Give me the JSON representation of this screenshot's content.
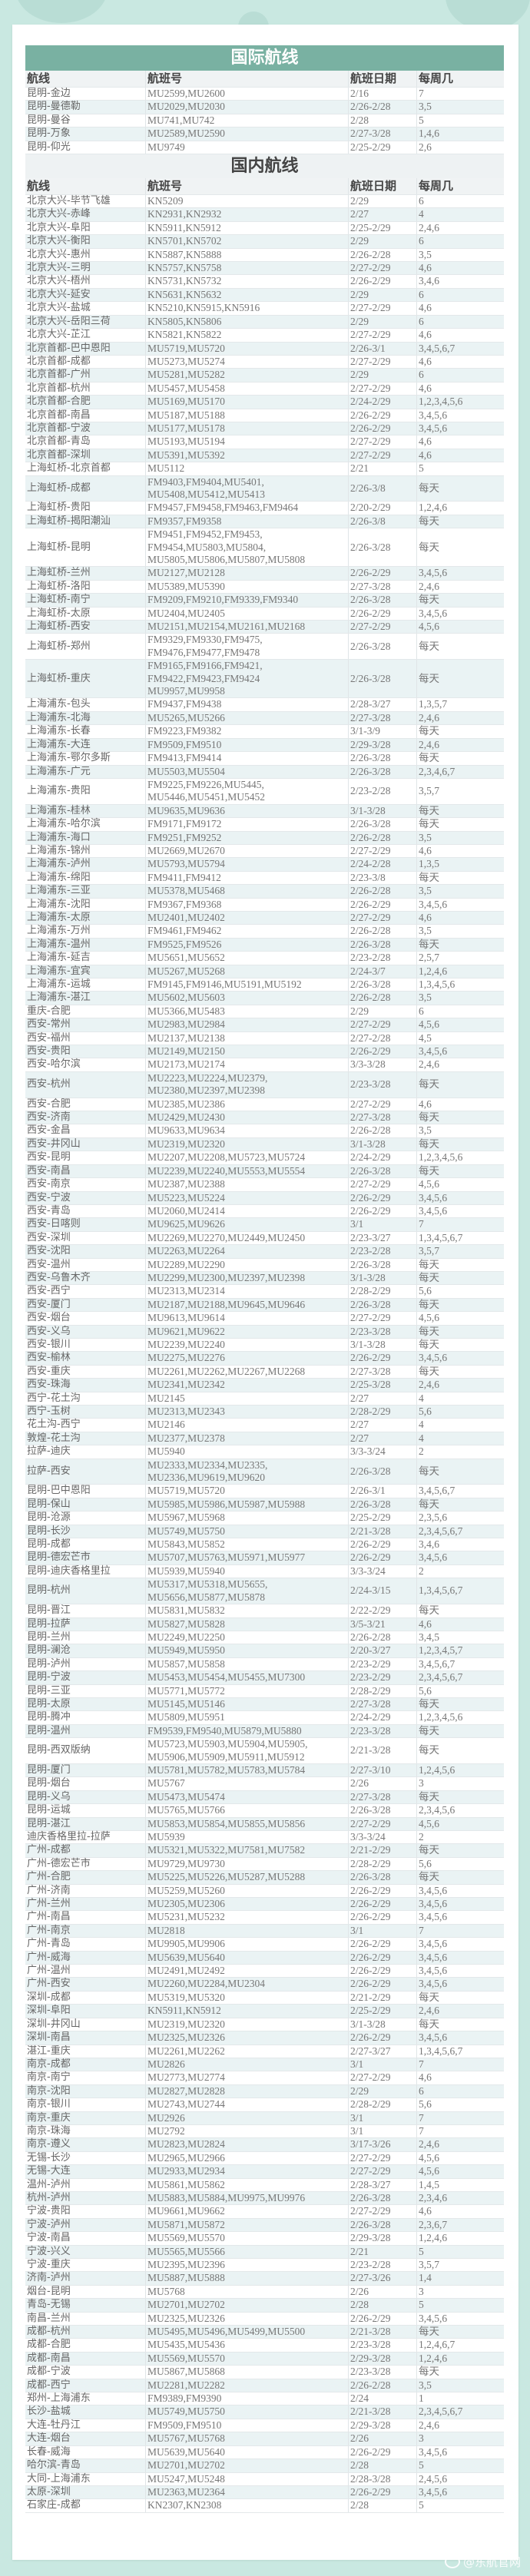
{
  "international": {
    "title": "国际航线",
    "headers": [
      "航线",
      "航班号",
      "航班日期",
      "每周几"
    ],
    "rows": [
      [
        "昆明-金边",
        "MU2599,MU2600",
        "2/16",
        "7"
      ],
      [
        "昆明-曼德勒",
        "MU2029,MU2030",
        "2/26-2/28",
        "3,5"
      ],
      [
        "昆明-曼谷",
        "MU741,MU742",
        "2/28",
        "5"
      ],
      [
        "昆明-万象",
        "MU2589,MU2590",
        "2/27-3/28",
        "1,4,6"
      ],
      [
        "昆明-仰光",
        "MU9749",
        "2/25-2/29",
        "2,6"
      ]
    ]
  },
  "domestic": {
    "title": "国内航线",
    "headers": [
      "航线",
      "航班号",
      "航班日期",
      "每周几"
    ],
    "rows": [
      [
        "北京大兴-毕节飞雄",
        "KN5209",
        "2/29",
        "6"
      ],
      [
        "北京大兴-赤峰",
        "KN2931,KN2932",
        "2/27",
        "4"
      ],
      [
        "北京大兴-阜阳",
        "KN5911,KN5912",
        "2/25-2/29",
        "2,4,6"
      ],
      [
        "北京大兴-衡阳",
        "KN5701,KN5702",
        "2/29",
        "6"
      ],
      [
        "北京大兴-惠州",
        "KN5887,KN5888",
        "2/26-2/28",
        "3,5"
      ],
      [
        "北京大兴-三明",
        "KN5757,KN5758",
        "2/27-2/29",
        "4,6"
      ],
      [
        "北京大兴-梧州",
        "KN5731,KN5732",
        "2/26-2/29",
        "3,4,6"
      ],
      [
        "北京大兴-延安",
        "KN5631,KN5632",
        "2/29",
        "6"
      ],
      [
        "北京大兴-盐城",
        "KN5210,KN5915,KN5916",
        "2/27-2/29",
        "4,6"
      ],
      [
        "北京大兴-岳阳三荷",
        "KN5805,KN5806",
        "2/29",
        "6"
      ],
      [
        "北京大兴-芷江",
        "KN5821,KN5822",
        "2/27-2/29",
        "4,6"
      ],
      [
        "北京首都-巴中恩阳",
        "MU5719,MU5720",
        "2/26-3/1",
        "3,4,5,6,7"
      ],
      [
        "北京首都-成都",
        "MU5273,MU5274",
        "2/27-2/29",
        "4,6"
      ],
      [
        "北京首都-广州",
        "MU5281,MU5282",
        "2/29",
        "6"
      ],
      [
        "北京首都-杭州",
        "MU5457,MU5458",
        "2/27-2/29",
        "4,6"
      ],
      [
        "北京首都-合肥",
        "MU5169,MU5170",
        "2/24-2/29",
        "1,2,3,4,5,6"
      ],
      [
        "北京首都-南昌",
        "MU5187,MU5188",
        "2/26-2/29",
        "3,4,5,6"
      ],
      [
        "北京首都-宁波",
        "MU5177,MU5178",
        "2/26-2/29",
        "3,4,5,6"
      ],
      [
        "北京首都-青岛",
        "MU5193,MU5194",
        "2/27-2/29",
        "4,6"
      ],
      [
        "北京首都-深圳",
        "MU5391,MU5392",
        "2/27-2/29",
        "4,6"
      ],
      [
        "上海虹桥-北京首都",
        "MU5112",
        "2/21",
        "5"
      ],
      [
        "上海虹桥-成都",
        "FM9403,FM9404,MU5401,\nMU5408,MU5412,MU5413",
        "2/26-3/8",
        "每天"
      ],
      [
        "上海虹桥-贵阳",
        "FM9457,FM9458,FM9463,FM9464",
        "2/20-2/29",
        "1,2,4,6"
      ],
      [
        "上海虹桥-揭阳潮汕",
        "FM9357,FM9358",
        "2/26-3/8",
        "每天"
      ],
      [
        "上海虹桥-昆明",
        "FM9451,FM9452,FM9453,\nFM9454,MU5803,MU5804,\nMU5805,MU5806,MU5807,MU5808",
        "2/26-3/28",
        "每天"
      ],
      [
        "上海虹桥-兰州",
        "MU2127,MU2128",
        "2/26-2/29",
        "3,4,5,6"
      ],
      [
        "上海虹桥-洛阳",
        "MU5389,MU5390",
        "2/27-3/28",
        "2,4,6"
      ],
      [
        "上海虹桥-南宁",
        "FM9209,FM9210,FM9339,FM9340",
        "2/26-3/28",
        "每天"
      ],
      [
        "上海虹桥-太原",
        "MU2404,MU2405",
        "2/26-2/29",
        "3,4,5,6"
      ],
      [
        "上海虹桥-西安",
        "MU2151,MU2154,MU2161,MU2168",
        "2/27-2/29",
        "4,5,6"
      ],
      [
        "上海虹桥-郑州",
        "FM9329,FM9330,FM9475,\nFM9476,FM9477,FM9478",
        "2/26-3/28",
        "每天"
      ],
      [
        "上海虹桥-重庆",
        "FM9165,FM9166,FM9421,\nFM9422,FM9423,FM9424\nMU9957,MU9958",
        "2/26-3/28",
        "每天"
      ],
      [
        "上海浦东-包头",
        "FM9437,FM9438",
        "2/28-3/27",
        "1,3,5,7"
      ],
      [
        "上海浦东-北海",
        "MU5265,MU5266",
        "2/27-3/28",
        "2,4,6"
      ],
      [
        "上海浦东-长春",
        "FM9223,FM9382",
        "3/1-3/9",
        "每天"
      ],
      [
        "上海浦东-大连",
        "FM9509,FM9510",
        "2/29-3/28",
        "2,4,6"
      ],
      [
        "上海浦东-鄂尔多斯",
        "FM9413,FM9414",
        "2/26-3/28",
        "每天"
      ],
      [
        "上海浦东-广元",
        "MU5503,MU5504",
        "2/26-3/28",
        "2,3,4,6,7"
      ],
      [
        "上海浦东-贵阳",
        "FM9225,FM9226,MU5445,\nMU5446,MU5451,MU5452",
        "2/23-2/28",
        "3,5,7"
      ],
      [
        "上海浦东-桂林",
        "MU9635,MU9636",
        "3/1-3/28",
        "每天"
      ],
      [
        "上海浦东-哈尔滨",
        "FM9171,FM9172",
        "2/26-3/28",
        "每天"
      ],
      [
        "上海浦东-海口",
        "FM9251,FM9252",
        "2/26-2/28",
        "3,5"
      ],
      [
        "上海浦东-锦州",
        "MU2669,MU2670",
        "2/27-2/29",
        "4,6"
      ],
      [
        "上海浦东-泸州",
        "MU5793,MU5794",
        "2/24-2/28",
        "1,3,5"
      ],
      [
        "上海浦东-绵阳",
        "FM9411,FM9412",
        "2/23-3/8",
        "每天"
      ],
      [
        "上海浦东-三亚",
        "MU5378,MU5468",
        "2/26-2/28",
        "3,5"
      ],
      [
        "上海浦东-沈阳",
        "FM9367,FM9368",
        "2/26-2/29",
        "3,4,5,6"
      ],
      [
        "上海浦东-太原",
        "MU2401,MU2402",
        "2/27-2/29",
        "4,6"
      ],
      [
        "上海浦东-万州",
        "FM9461,FM9462",
        "2/26-2/28",
        "3,5"
      ],
      [
        "上海浦东-温州",
        "FM9525,FM9526",
        "2/26-3/28",
        "每天"
      ],
      [
        "上海浦东-延吉",
        "MU5651,MU5652",
        "2/23-2/28",
        "2,5,7"
      ],
      [
        "上海浦东-宜宾",
        "MU5267,MU5268",
        "2/24-3/7",
        "1,2,4,6"
      ],
      [
        "上海浦东-运城",
        "FM9145,FM9146,MU5191,MU5192",
        "2/26-3/28",
        "1,3,4,5,6"
      ],
      [
        "上海浦东-湛江",
        "MU5602,MU5603",
        "2/26-2/28",
        "3,5"
      ],
      [
        "重庆-合肥",
        "MU5366,MU5483",
        "2/29",
        "6"
      ],
      [
        "西安-常州",
        "MU2983,MU2984",
        "2/27-2/29",
        "4,5,6"
      ],
      [
        "西安-福州",
        "MU2137,MU2138",
        "2/27-2/28",
        "4,5"
      ],
      [
        "西安-贵阳",
        "MU2149,MU2150",
        "2/26-2/29",
        "3,4,5,6"
      ],
      [
        "西安-哈尔滨",
        "MU2173,MU2174",
        "3/3-3/28",
        "2,4,6"
      ],
      [
        "西安-杭州",
        "MU2223,MU2224,MU2379,\nMU2380,MU2397,MU2398",
        "2/23-3/28",
        "每天"
      ],
      [
        "西安-合肥",
        "MU2385,MU2386",
        "2/27-2/29",
        "4,6"
      ],
      [
        "西安-济南",
        "MU2429,MU2430",
        "2/27-3/28",
        "每天"
      ],
      [
        "西安-金昌",
        "MU9633,MU9634",
        "2/26-2/28",
        "3,5"
      ],
      [
        "西安-井冈山",
        "MU2319,MU2320",
        "3/1-3/28",
        "每天"
      ],
      [
        "西安-昆明",
        "MU2207,MU2208,MU5723,MU5724",
        "2/24-2/29",
        "1,2,3,4,5,6"
      ],
      [
        "西安-南昌",
        "MU2239,MU2240,MU5553,MU5554",
        "2/26-3/28",
        "每天"
      ],
      [
        "西安-南京",
        "MU2387,MU2388",
        "2/27-2/29",
        "4,5,6"
      ],
      [
        "西安-宁波",
        "MU5223,MU5224",
        "2/26-2/29",
        "3,4,5,6"
      ],
      [
        "西安-青岛",
        "MU2060,MU2414",
        "2/26-2/29",
        "3,4,5,6"
      ],
      [
        "西安-日喀则",
        "MU9625,MU9626",
        "3/1",
        "7"
      ],
      [
        "西安-深圳",
        "MU2269,MU2270,MU2449,MU2450",
        "2/23-3/27",
        "1,3,4,5,6,7"
      ],
      [
        "西安-沈阳",
        "MU2263,MU2264",
        "2/23-2/28",
        "3,5,7"
      ],
      [
        "西安-温州",
        "MU2289,MU2290",
        "2/26-3/28",
        "每天"
      ],
      [
        "西安-乌鲁木齐",
        "MU2299,MU2300,MU2397,MU2398",
        "3/1-3/28",
        "每天"
      ],
      [
        "西安-西宁",
        "MU2313,MU2314",
        "2/28-2/29",
        "5,6"
      ],
      [
        "西安-厦门",
        "MU2187,MU2188,MU9645,MU9646",
        "2/26-3/28",
        "每天"
      ],
      [
        "西安-烟台",
        "MU9613,MU9614",
        "2/27-2/29",
        "4,5,6"
      ],
      [
        "西安-义乌",
        "MU9621,MU9622",
        "2/23-3/28",
        "每天"
      ],
      [
        "西安-银川",
        "MU2239,MU2240",
        "3/1-3/28",
        "每天"
      ],
      [
        "西安-榆林",
        "MU2275,MU2276",
        "2/26-2/29",
        "3,4,5,6"
      ],
      [
        "西安-重庆",
        "MU2261,MU2262,MU2267,MU2268",
        "2/27-3/28",
        "每天"
      ],
      [
        "西安-珠海",
        "MU2341,MU2342",
        "2/25-3/28",
        "2,4,6"
      ],
      [
        "西宁-花土沟",
        "MU2145",
        "2/27",
        "4"
      ],
      [
        "西宁-玉树",
        "MU2313,MU2343",
        "2/28-2/29",
        "5,6"
      ],
      [
        "花土沟-西宁",
        "MU2146",
        "2/27",
        "4"
      ],
      [
        "敦煌-花土沟",
        "MU2377,MU2378",
        "2/27",
        "4"
      ],
      [
        "拉萨-迪庆",
        "MU5940",
        "3/3-3/24",
        "2"
      ],
      [
        "拉萨-西安",
        "MU2333,MU2334,MU2335,\nMU2336,MU9619,MU9620",
        "2/26-3/28",
        "每天"
      ],
      [
        "昆明-巴中恩阳",
        "MU5719,MU5720",
        "2/26-3/1",
        "3,4,5,6,7"
      ],
      [
        "昆明-保山",
        "MU5985,MU5986,MU5987,MU5988",
        "2/26-3/28",
        "每天"
      ],
      [
        "昆明-沧源",
        "MU5967,MU5968",
        "2/25-2/29",
        "2,3,5,6"
      ],
      [
        "昆明-长沙",
        "MU5749,MU5750",
        "2/21-3/28",
        "2,3,4,5,6,7"
      ],
      [
        "昆明-成都",
        "MU5843,MU5852",
        "2/26-2/29",
        "3,4,6"
      ],
      [
        "昆明-德宏芒市",
        "MU5707,MU5763,MU5971,MU5977",
        "2/26-2/29",
        "3,4,5,6"
      ],
      [
        "昆明-迪庆香格里拉",
        "MU5939,MU5940",
        "3/3-3/24",
        "2"
      ],
      [
        "昆明-杭州",
        "MU5317,MU5318,MU5655,\nMU5656,MU5877,MU5878",
        "2/24-3/15",
        "1,3,4,5,6,7"
      ],
      [
        "昆明-晋江",
        "MU5831,MU5832",
        "2/22-2/29",
        "每天"
      ],
      [
        "昆明-拉萨",
        "MU5827,MU5828",
        "3/5-3/21",
        "4,6"
      ],
      [
        "昆明-兰州",
        "MU2249,MU2250",
        "2/26-2/28",
        "3,4,5"
      ],
      [
        "昆明-澜沧",
        "MU5949,MU5950",
        "2/20-3/27",
        "1,2,3,4,5,7"
      ],
      [
        "昆明-泸州",
        "MU5857,MU5858",
        "2/23-2/29",
        "3,4,5,6,7"
      ],
      [
        "昆明-宁波",
        "MU5453,MU5454,MU5455,MU7300",
        "2/23-2/29",
        "2,3,4,5,6,7"
      ],
      [
        "昆明-三亚",
        "MU5771,MU5772",
        "2/28-2/29",
        "5,6"
      ],
      [
        "昆明-太原",
        "MU5145,MU5146",
        "2/27-3/28",
        "每天"
      ],
      [
        "昆明-腾冲",
        "MU5809,MU5951",
        "2/24-2/29",
        "1,2,3,4,5,6"
      ],
      [
        "昆明-温州",
        "FM9539,FM9540,MU5879,MU5880",
        "2/23-3/28",
        "每天"
      ],
      [
        "昆明-西双版纳",
        "MU5723,MU5903,MU5904,MU5905,\nMU5906,MU5909,MU5911,MU5912",
        "2/21-3/28",
        "每天"
      ],
      [
        "昆明-厦门",
        "MU5781,MU5782,MU5783,MU5784",
        "2/27-3/10",
        "1,2,4,5,6"
      ],
      [
        "昆明-烟台",
        "MU5767",
        "2/26",
        "3"
      ],
      [
        "昆明-义乌",
        "MU5473,MU5474",
        "2/27-3/28",
        "每天"
      ],
      [
        "昆明-运城",
        "MU5765,MU5766",
        "2/26-3/28",
        "2,3,4,5,6"
      ],
      [
        "昆明-湛江",
        "MU5853,MU5854,MU5855,MU5856",
        "2/27-2/29",
        "4,5,6"
      ],
      [
        "迪庆香格里拉-拉萨",
        "MU5939",
        "3/3-3/24",
        "2"
      ],
      [
        "广州-成都",
        "MU5321,MU5322,MU7581,MU7582",
        "2/21-2/29",
        "每天"
      ],
      [
        "广州-德宏芒市",
        "MU9729,MU9730",
        "2/28-2/29",
        "5,6"
      ],
      [
        "广州-合肥",
        "MU5225,MU5226,MU5287,MU5288",
        "2/26-3/28",
        "每天"
      ],
      [
        "广州-济南",
        "MU5259,MU5260",
        "2/26-2/29",
        "3,4,5,6"
      ],
      [
        "广州-兰州",
        "MU2305,MU2306",
        "2/26-2/29",
        "3,4,5,6"
      ],
      [
        "广州-南昌",
        "MU5231,MU5232",
        "2/26-2/29",
        "3,4,5,6"
      ],
      [
        "广州-南京",
        "MU2818",
        "3/1",
        "7"
      ],
      [
        "广州-青岛",
        "MU9905,MU9906",
        "2/26-2/29",
        "3,4,5,6"
      ],
      [
        "广州-威海",
        "MU5639,MU5640",
        "2/26-2/29",
        "3,4,5,6"
      ],
      [
        "广州-温州",
        "MU2491,MU2492",
        "2/26-2/29",
        "3,4,5,6"
      ],
      [
        "广州-西安",
        "MU2260,MU2284,MU2304",
        "2/26-2/29",
        "3,4,5,6"
      ],
      [
        "深圳-成都",
        "MU5319,MU5320",
        "2/21-2/29",
        "每天"
      ],
      [
        "深圳-阜阳",
        "KN5911,KN5912",
        "2/25-2/29",
        "2,4,6"
      ],
      [
        "深圳-井冈山",
        "MU2319,MU2320",
        "3/1-3/28",
        "每天"
      ],
      [
        "深圳-南昌",
        "MU2325,MU2326",
        "2/26-2/29",
        "3,4,5,6"
      ],
      [
        "湛江-重庆",
        "MU2261,MU2262",
        "2/27-3/27",
        "1,3,4,5,6,7"
      ],
      [
        "南京-成都",
        "MU2826",
        "3/1",
        "7"
      ],
      [
        "南京-南宁",
        "MU2773,MU2774",
        "2/27-2/29",
        "4,6"
      ],
      [
        "南京-沈阳",
        "MU2827,MU2828",
        "2/29",
        "6"
      ],
      [
        "南京-银川",
        "MU2743,MU2744",
        "2/28-2/29",
        "5,6"
      ],
      [
        "南京-重庆",
        "MU2926",
        "3/1",
        "7"
      ],
      [
        "南京-珠海",
        "MU2792",
        "3/1",
        "7"
      ],
      [
        "南京-遵义",
        "MU2823,MU2824",
        "3/17-3/26",
        "2,4,6"
      ],
      [
        "无锡-长沙",
        "MU2965,MU2966",
        "2/27-2/29",
        "4,5,6"
      ],
      [
        "无锡-大连",
        "MU2933,MU2934",
        "2/27-2/29",
        "4,5,6"
      ],
      [
        "温州-泸州",
        "MU5861,MU5862",
        "2/28-3/27",
        "1,4,5"
      ],
      [
        "杭州-泸州",
        "MU5883,MU5884,MU9975,MU9976",
        "2/26-3/28",
        "2,3,4,6"
      ],
      [
        "宁波-贵阳",
        "MU9661,MU9662",
        "2/27-2/29",
        "4,6"
      ],
      [
        "宁波-泸州",
        "MU5871,MU5872",
        "2/26-3/28",
        "2,3,6,7"
      ],
      [
        "宁波-南昌",
        "MU5569,MU5570",
        "2/29-3/28",
        "1,2,4,6"
      ],
      [
        "宁波-兴义",
        "MU5565,MU5566",
        "2/21",
        "5"
      ],
      [
        "宁波-重庆",
        "MU2395,MU2396",
        "2/23-2/28",
        "3,5,7"
      ],
      [
        "济南-泸州",
        "MU5887,MU5888",
        "2/27-3/26",
        "1,4"
      ],
      [
        "烟台-昆明",
        "MU5768",
        "2/26",
        "3"
      ],
      [
        "青岛-无锡",
        "MU2701,MU2702",
        "2/28",
        "5"
      ],
      [
        "南昌-兰州",
        "MU2325,MU2326",
        "2/26-2/29",
        "3,4,5,6"
      ],
      [
        "成都-杭州",
        "MU5495,MU5496,MU5499,MU5500",
        "2/21-3/28",
        "每天"
      ],
      [
        "成都-合肥",
        "MU5435,MU5436",
        "2/23-3/28",
        "1,2,4,6,7"
      ],
      [
        "成都-南昌",
        "MU5569,MU5570",
        "2/29-3/28",
        "1,2,4,6"
      ],
      [
        "成都-宁波",
        "MU5867,MU5868",
        "2/23-3/28",
        "每天"
      ],
      [
        "成都-西宁",
        "MU2281,MU2282",
        "2/26-2/28",
        "3,5"
      ],
      [
        "郑州-上海浦东",
        "FM9389,FM9390",
        "2/24",
        "1"
      ],
      [
        "长沙-盐城",
        "MU5749,MU5750",
        "2/21-3/28",
        "2,3,4,5,6,7"
      ],
      [
        "大连-牡丹江",
        "FM9509,FM9510",
        "2/29-3/28",
        "2,4,6"
      ],
      [
        "大连-烟台",
        "MU5767,MU5768",
        "2/26",
        "3"
      ],
      [
        "长春-威海",
        "MU5639,MU5640",
        "2/26-2/29",
        "3,4,5,6"
      ],
      [
        "哈尔滨-青岛",
        "MU2701,MU2702",
        "2/28",
        "5"
      ],
      [
        "大同-上海浦东",
        "MU5247,MU5248",
        "2/28-3/28",
        "2,4,5,6"
      ],
      [
        "太原-深圳",
        "MU2363,MU2364",
        "2/26-2/29",
        "3,4,5,6"
      ],
      [
        "石家庄-成都",
        "KN2307,KN2308",
        "2/28",
        "5"
      ]
    ]
  },
  "watermark": "@东航官网",
  "colors": {
    "background": "#c9e8e1",
    "title_bar": "#79b1a2",
    "row_alt": "#eaf3f4"
  }
}
